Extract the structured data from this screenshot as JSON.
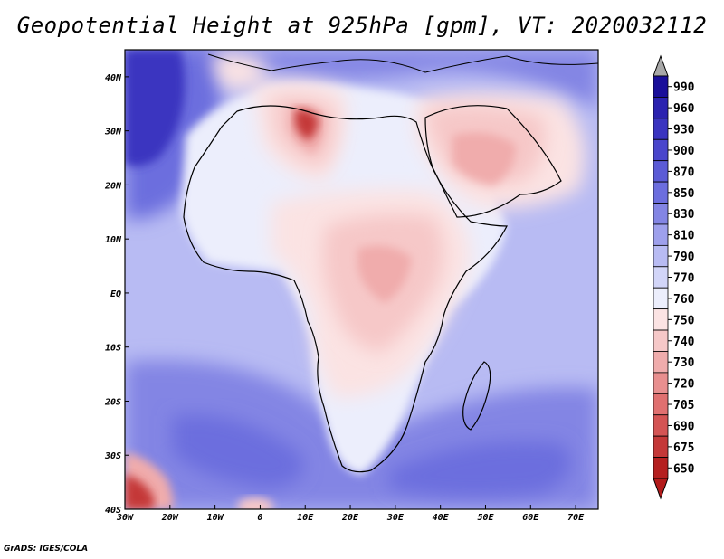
{
  "title": "Geopotential Height at 925hPa [gpm], VT: 2020032112",
  "credit": "GrADS: IGES/COLA",
  "map": {
    "lon_range": [
      -30,
      75
    ],
    "lat_range": [
      -40,
      45
    ],
    "lon_ticks": [
      {
        "value": -30,
        "label": "30W"
      },
      {
        "value": -20,
        "label": "20W"
      },
      {
        "value": -10,
        "label": "10W"
      },
      {
        "value": 0,
        "label": "0"
      },
      {
        "value": 10,
        "label": "10E"
      },
      {
        "value": 20,
        "label": "20E"
      },
      {
        "value": 30,
        "label": "30E"
      },
      {
        "value": 40,
        "label": "40E"
      },
      {
        "value": 50,
        "label": "50E"
      },
      {
        "value": 60,
        "label": "60E"
      },
      {
        "value": 70,
        "label": "70E"
      }
    ],
    "lat_ticks": [
      {
        "value": 40,
        "label": "40N"
      },
      {
        "value": 30,
        "label": "30N"
      },
      {
        "value": 20,
        "label": "20N"
      },
      {
        "value": 10,
        "label": "10N"
      },
      {
        "value": 0,
        "label": "EQ"
      },
      {
        "value": -10,
        "label": "10S"
      },
      {
        "value": -20,
        "label": "20S"
      },
      {
        "value": -30,
        "label": "30S"
      },
      {
        "value": -40,
        "label": "40S"
      }
    ]
  },
  "colorbar": {
    "labels": [
      "990",
      "960",
      "930",
      "900",
      "870",
      "850",
      "830",
      "810",
      "790",
      "770",
      "760",
      "750",
      "740",
      "730",
      "720",
      "705",
      "690",
      "675",
      "650"
    ],
    "colors": [
      "#1a0f9a",
      "#2b22b0",
      "#3a34c0",
      "#4a46cc",
      "#5b5bd6",
      "#6c6ede",
      "#8385e4",
      "#9ea0ec",
      "#b8bbf3",
      "#d2d5f8",
      "#eceefc",
      "#fbe3e3",
      "#f6c8c8",
      "#f0acac",
      "#e88f8f",
      "#e07070",
      "#d45454",
      "#c43838",
      "#b52020"
    ],
    "top_arrow_color": "#a8a8a8",
    "bottom_arrow_color": "#b31b1b"
  },
  "field_colors": {
    "ocean": "#b8bbf3",
    "ocean_deep": "#8385e4",
    "ocean_deeper": "#6c6ede",
    "deep_low": "#3a34c0",
    "near": "#d2d5f8",
    "land_light": "#eceefc",
    "warm_1": "#fbe3e3",
    "warm_2": "#f6c8c8",
    "warm_3": "#f0acac",
    "warm_4": "#e07070",
    "warm_5": "#c43838"
  }
}
